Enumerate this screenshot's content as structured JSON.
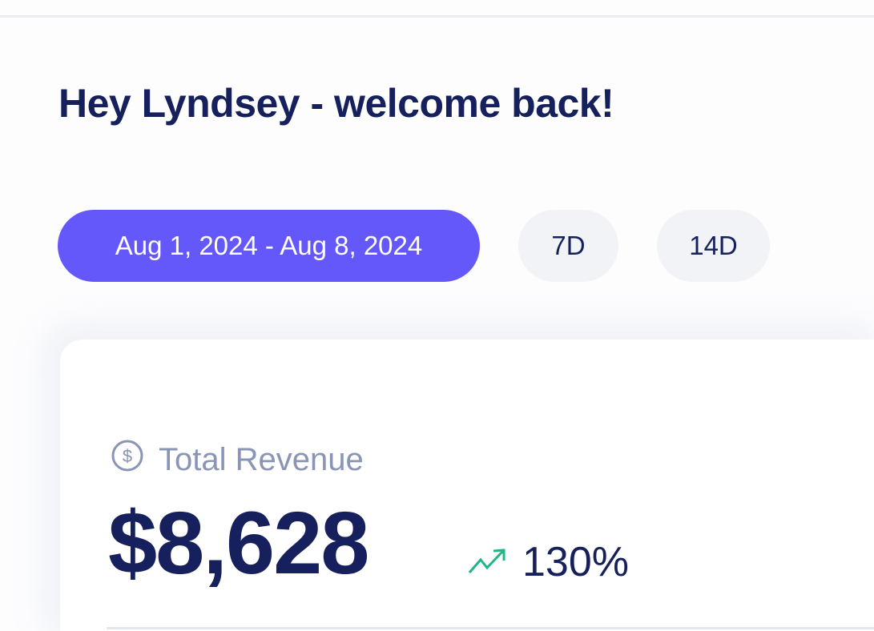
{
  "header": {
    "greeting": "Hey Lyndsey - welcome back!"
  },
  "filters": {
    "date_range": "Aug 1, 2024 - Aug 8, 2024",
    "options": [
      "7D",
      "14D"
    ],
    "accent": "#6558fb"
  },
  "revenue": {
    "label": "Total Revenue",
    "icon": "dollar-circle-icon",
    "value": "$8,628",
    "change": "130%",
    "trend_icon": "trending-up-icon",
    "trend_color": "#1fb58a"
  }
}
